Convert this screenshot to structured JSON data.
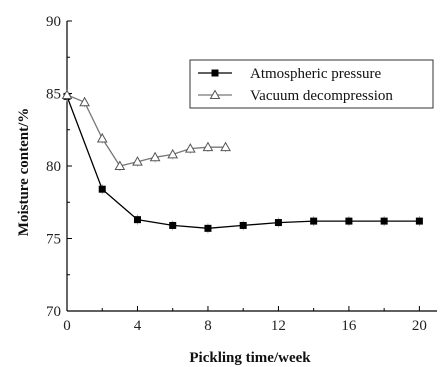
{
  "chart_data": {
    "type": "line",
    "xlabel": "Pickling time/week",
    "ylabel": "Moisture content/%",
    "xlim": [
      0,
      21
    ],
    "ylim": [
      70,
      90
    ],
    "xticks": [
      0,
      4,
      8,
      12,
      16,
      20
    ],
    "yticks": [
      70,
      75,
      80,
      85,
      90
    ],
    "grid": false,
    "legend_position": "top-right",
    "series": [
      {
        "name": "Atmospheric pressure",
        "marker": "square-filled",
        "color": "#000000",
        "x": [
          0,
          2,
          4,
          6,
          8,
          10,
          12,
          14,
          16,
          18,
          20
        ],
        "y": [
          84.8,
          78.4,
          76.3,
          75.9,
          75.7,
          75.9,
          76.1,
          76.2,
          76.2,
          76.2,
          76.2
        ]
      },
      {
        "name": "Vacuum decompression",
        "marker": "triangle-open",
        "color": "#777777",
        "x": [
          0,
          1,
          2,
          3,
          4,
          5,
          6,
          7,
          8,
          9
        ],
        "y": [
          84.9,
          84.4,
          81.9,
          80.0,
          80.3,
          80.6,
          80.8,
          81.2,
          81.3,
          81.3
        ]
      }
    ]
  }
}
